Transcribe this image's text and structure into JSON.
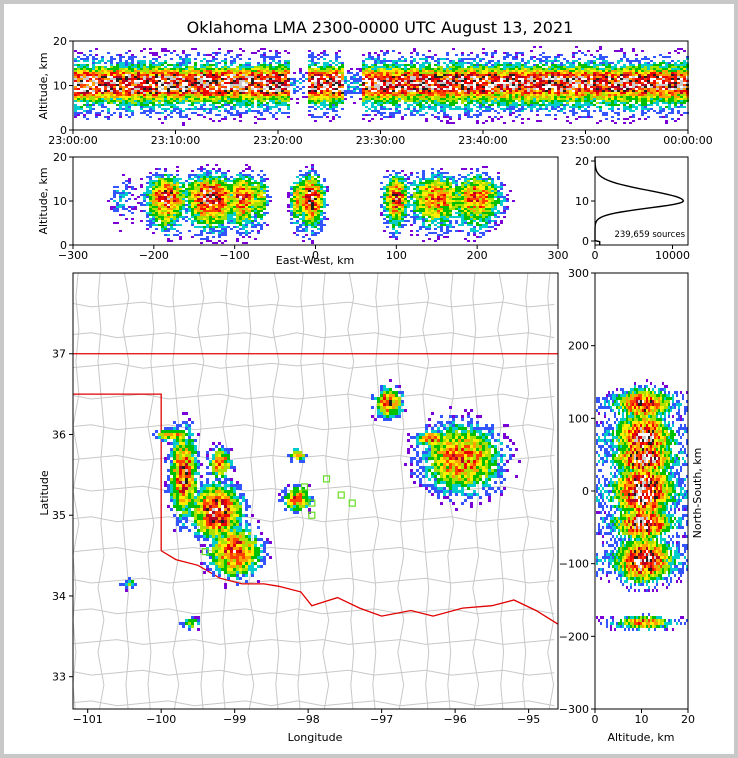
{
  "title": "Oklahoma LMA 2300-0000 UTC August 13, 2021",
  "colors": {
    "border": "#e00000",
    "county": "#c8c8c8",
    "station": "#66dd22",
    "density": [
      "#7a00d6",
      "#3355ff",
      "#00cccc",
      "#00c000",
      "#a8e000",
      "#ffee00",
      "#ffa000",
      "#ff4000",
      "#ee0000",
      "#b0002a",
      "#202020",
      "#c8c8c8",
      "#ffffff"
    ]
  },
  "chart_data": [
    {
      "id": "time-height",
      "type": "heatmap",
      "ylabel": "Altitude, km",
      "ylim": [
        0,
        20
      ],
      "yticks": [
        "0",
        "10",
        "20"
      ],
      "xticks": [
        "23:00:00",
        "23:10:00",
        "23:20:00",
        "23:30:00",
        "23:40:00",
        "23:50:00",
        "00:00:00"
      ],
      "xlim_minutes": [
        0,
        60
      ]
    },
    {
      "id": "ew-height",
      "type": "heatmap",
      "xlabel": "East-West, km",
      "ylabel": "Altitude, km",
      "xlim": [
        -300,
        300
      ],
      "ylim": [
        0,
        20
      ],
      "xticks": [
        "−300",
        "−200",
        "−100",
        "0",
        "100",
        "200",
        "300"
      ],
      "yticks": [
        "0",
        "10",
        "20"
      ]
    },
    {
      "id": "altitude-histogram",
      "type": "line",
      "xlim": [
        0,
        12000
      ],
      "ylim": [
        0,
        20
      ],
      "xticks": [
        "0",
        "10000"
      ],
      "yticks": [
        "0",
        "10",
        "20"
      ],
      "annotation": "239,659 sources",
      "profile_peak_alt_km": 10
    },
    {
      "id": "plan-view",
      "type": "heatmap",
      "xlabel": "Longitude",
      "ylabel": "Latitude",
      "xlim": [
        -101.2,
        -94.6
      ],
      "ylim": [
        32.6,
        38.0
      ],
      "xticks": [
        "−101",
        "−100",
        "−99",
        "−98",
        "−97",
        "−96",
        "−95"
      ],
      "yticks": [
        "33",
        "34",
        "35",
        "36",
        "37"
      ]
    },
    {
      "id": "ns-height",
      "type": "heatmap",
      "xlabel": "Altitude, km",
      "ylabel": "North-South, km",
      "xlim": [
        0,
        20
      ],
      "ylim": [
        -300,
        300
      ],
      "xticks": [
        "0",
        "10",
        "20"
      ],
      "yticks": [
        "−300",
        "−200",
        "−100",
        "0",
        "100",
        "200",
        "300"
      ]
    }
  ]
}
